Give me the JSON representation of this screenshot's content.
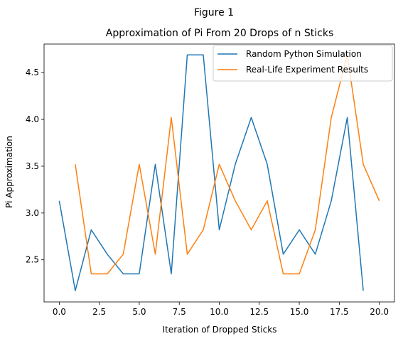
{
  "figure_title": "Figure 1",
  "chart_data": {
    "type": "line",
    "title": "Approximation of Pi From 20 Drops of n Sticks",
    "xlabel": "Iteration of Dropped Sticks",
    "ylabel": "Pi Approximation",
    "xlim": [
      -0.95,
      20.95
    ],
    "ylim": [
      2.05,
      4.805
    ],
    "xticks": [
      0.0,
      2.5,
      5.0,
      7.5,
      10.0,
      12.5,
      15.0,
      17.5,
      20.0
    ],
    "xtick_labels": [
      "0.0",
      "2.5",
      "5.0",
      "7.5",
      "10.0",
      "12.5",
      "15.0",
      "17.5",
      "20.0"
    ],
    "yticks": [
      2.5,
      3.0,
      3.5,
      4.0,
      4.5
    ],
    "ytick_labels": [
      "2.5",
      "3.0",
      "3.5",
      "4.0",
      "4.5"
    ],
    "grid": false,
    "legend_position": "top-right",
    "series": [
      {
        "name": "Random Python Simulation",
        "color": "#1f77b4",
        "x": [
          0,
          1,
          2,
          3,
          4,
          5,
          6,
          7,
          8,
          9,
          10,
          11,
          12,
          13,
          14,
          15,
          16,
          17,
          18,
          19
        ],
        "values": [
          3.13,
          2.17,
          2.82,
          2.56,
          2.35,
          2.35,
          3.52,
          2.35,
          4.69,
          4.69,
          2.82,
          3.52,
          4.02,
          3.52,
          2.56,
          2.82,
          2.56,
          3.13,
          4.02,
          2.17
        ]
      },
      {
        "name": "Real-Life Experiment Results",
        "color": "#ff7f0e",
        "x": [
          1,
          2,
          3,
          4,
          5,
          6,
          7,
          8,
          9,
          10,
          11,
          12,
          13,
          14,
          15,
          16,
          17,
          18,
          19,
          20
        ],
        "values": [
          3.52,
          2.35,
          2.35,
          2.56,
          3.52,
          2.56,
          4.02,
          2.56,
          2.82,
          3.52,
          3.13,
          2.82,
          3.13,
          2.35,
          2.35,
          2.82,
          4.02,
          4.69,
          3.52,
          3.13
        ]
      }
    ]
  }
}
